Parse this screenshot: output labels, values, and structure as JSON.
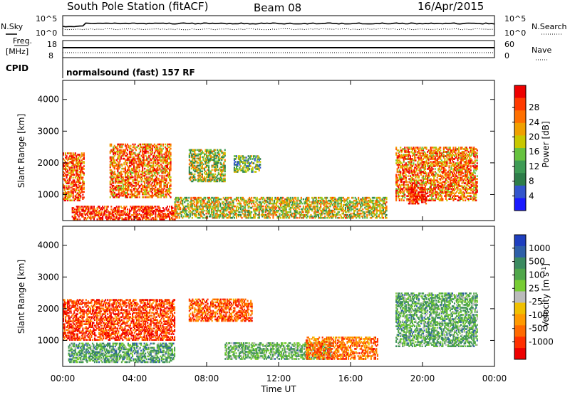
{
  "header": {
    "station": "South Pole Station (fitACF)",
    "beam": "Beam 08",
    "date": "16/Apr/2015"
  },
  "status_panels": {
    "nsky": {
      "label": "N.Sky",
      "ticks": [
        "10^5",
        "10^0"
      ]
    },
    "nsearch": {
      "label": "N.Search",
      "ticks": [
        "10^5",
        "10^0"
      ]
    },
    "freq": {
      "label_top": "Freq.",
      "label_bottom": "[MHz]",
      "ticks": [
        "18",
        "8"
      ]
    },
    "nave": {
      "label": "Nave",
      "ticks": [
        "60",
        "0"
      ]
    },
    "cpid": {
      "label": "CPID",
      "value": "normalsound (fast) 157 RF"
    }
  },
  "chart_data": [
    {
      "type": "heatmap",
      "name_printed": "",
      "ylabel": "Slant Range [km]",
      "xlabel": "",
      "x_ticks": [
        "00:00",
        "04:00",
        "08:00",
        "12:00",
        "16:00",
        "20:00",
        "00:00"
      ],
      "x_range_hours": [
        0,
        24
      ],
      "y_ticks": [
        1000,
        2000,
        3000,
        4000
      ],
      "ylim": [
        180,
        4600
      ],
      "colorbar": {
        "label": "Power [dB]",
        "ticks": [
          "4",
          "8",
          "12",
          "16",
          "20",
          "24",
          "28"
        ],
        "range": [
          0,
          30
        ],
        "colors": [
          "#1a1aff",
          "#3355cc",
          "#2e7d4a",
          "#3e9b55",
          "#66c23f",
          "#c8c800",
          "#f0a000",
          "#ff7000",
          "#ff3a00",
          "#ee0000"
        ]
      },
      "echo_regions": [
        {
          "t": [
            0.0,
            1.2
          ],
          "r": [
            800,
            2300
          ],
          "level": 0.8
        },
        {
          "t": [
            2.6,
            6.0
          ],
          "r": [
            900,
            2600
          ],
          "level": 0.75
        },
        {
          "t": [
            0.5,
            6.2
          ],
          "r": [
            200,
            650
          ],
          "level": 0.9
        },
        {
          "t": [
            7.0,
            9.0
          ],
          "r": [
            1400,
            2400
          ],
          "level": 0.5
        },
        {
          "t": [
            9.5,
            11.0
          ],
          "r": [
            1700,
            2200
          ],
          "level": 0.4
        },
        {
          "t": [
            6.2,
            18.0
          ],
          "r": [
            250,
            900
          ],
          "level": 0.55
        },
        {
          "t": [
            18.5,
            23.0
          ],
          "r": [
            800,
            2500
          ],
          "level": 0.75
        },
        {
          "t": [
            19.2,
            20.2
          ],
          "r": [
            700,
            1200
          ],
          "level": 0.95
        }
      ]
    },
    {
      "type": "heatmap",
      "name_printed": "",
      "ylabel": "Slant Range [km]",
      "xlabel": "Time UT",
      "x_ticks": [
        "00:00",
        "04:00",
        "08:00",
        "12:00",
        "16:00",
        "20:00",
        "00:00"
      ],
      "x_range_hours": [
        0,
        24
      ],
      "y_ticks": [
        1000,
        2000,
        3000,
        4000
      ],
      "ylim": [
        180,
        4600
      ],
      "colorbar": {
        "label": "Velocity [m s^-1]",
        "ticks": [
          "1000",
          "500",
          "100",
          "25",
          "-25",
          "-100",
          "-500",
          "-1000"
        ],
        "colors": [
          "#1f3fbf",
          "#2e5fa8",
          "#3a8a60",
          "#4fa64a",
          "#77cc33",
          "#bbbbbb",
          "#f0c000",
          "#ff9a00",
          "#ff6a00",
          "#ff3000",
          "#ee0000"
        ]
      },
      "echo_regions": [
        {
          "t": [
            0.0,
            6.2
          ],
          "r": [
            1000,
            2300
          ],
          "vel": -0.7
        },
        {
          "t": [
            0.3,
            6.2
          ],
          "r": [
            300,
            900
          ],
          "vel": 0.4
        },
        {
          "t": [
            7.0,
            10.5
          ],
          "r": [
            1600,
            2300
          ],
          "vel": -0.6
        },
        {
          "t": [
            9.0,
            15.0
          ],
          "r": [
            400,
            900
          ],
          "vel": 0.3
        },
        {
          "t": [
            13.5,
            17.5
          ],
          "r": [
            400,
            1100
          ],
          "vel": -0.5
        },
        {
          "t": [
            18.5,
            23.0
          ],
          "r": [
            800,
            2500
          ],
          "vel": 0.35
        }
      ]
    }
  ]
}
